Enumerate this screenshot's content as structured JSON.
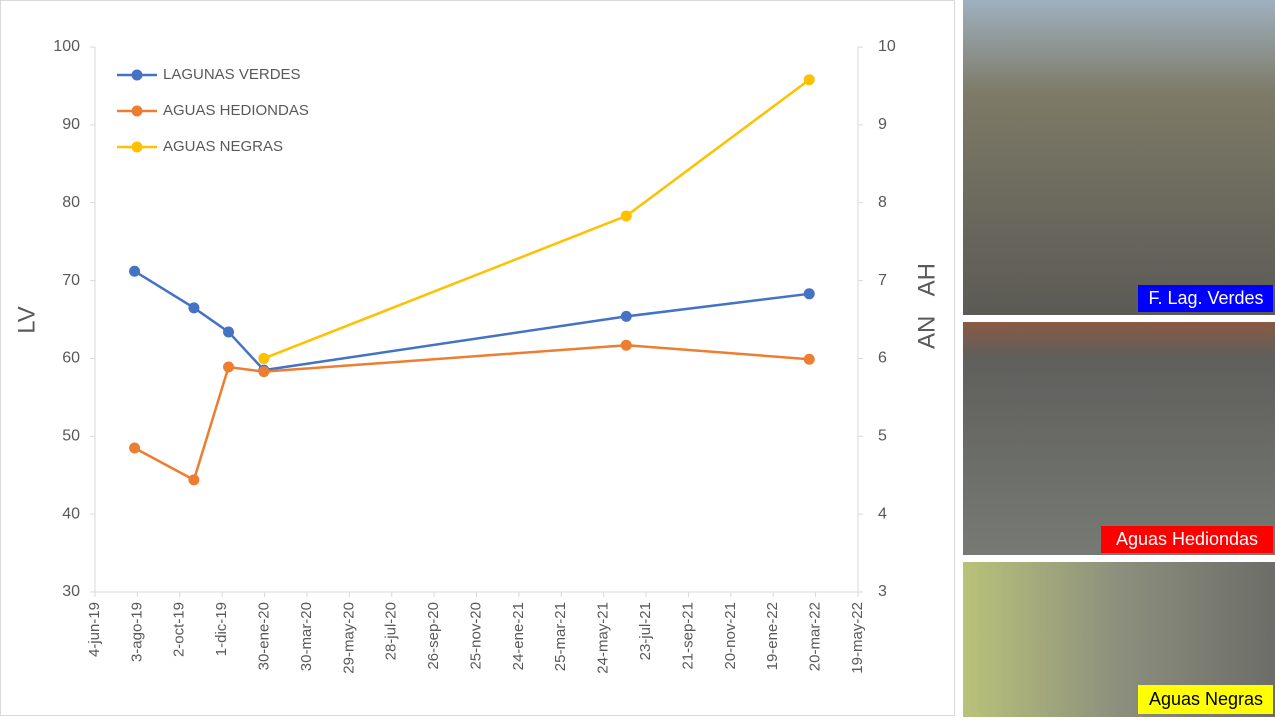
{
  "chart_data": {
    "type": "line",
    "x": [
      "2019-07-30",
      "2019-10-22",
      "2019-12-10",
      "2020-01-29",
      "2021-06-25",
      "2022-03-11"
    ],
    "series": [
      {
        "name": "LAGUNAS VERDES",
        "color": "#4472c4",
        "axis": "y",
        "values": [
          71.2,
          66.5,
          63.4,
          58.5,
          65.4,
          68.3
        ]
      },
      {
        "name": "AGUAS HEDIONDAS",
        "color": "#ed7d31",
        "axis": "y2",
        "values": [
          4.85,
          4.44,
          5.89,
          5.83,
          6.17,
          5.99
        ]
      },
      {
        "name": "AGUAS NEGRAS",
        "color": "#ffc000",
        "axis": "y2",
        "values": [
          null,
          null,
          null,
          6.0,
          7.83,
          9.58
        ]
      }
    ],
    "ylabel": "LV",
    "y2label": "AN AH",
    "xlim": [
      "2019-06-04",
      "2022-05-19"
    ],
    "xticks": [
      {
        "value": "2019-06-04",
        "label": "4-jun-19"
      },
      {
        "value": "2019-08-03",
        "label": "3-ago-19"
      },
      {
        "value": "2019-10-02",
        "label": "2-oct-19"
      },
      {
        "value": "2019-12-01",
        "label": "1-dic-19"
      },
      {
        "value": "2020-01-30",
        "label": "30-ene-20"
      },
      {
        "value": "2020-03-30",
        "label": "30-mar-20"
      },
      {
        "value": "2020-05-29",
        "label": "29-may-20"
      },
      {
        "value": "2020-07-28",
        "label": "28-jul-20"
      },
      {
        "value": "2020-09-26",
        "label": "26-sep-20"
      },
      {
        "value": "2020-11-25",
        "label": "25-nov-20"
      },
      {
        "value": "2021-01-24",
        "label": "24-ene-21"
      },
      {
        "value": "2021-03-25",
        "label": "25-mar-21"
      },
      {
        "value": "2021-05-24",
        "label": "24-may-21"
      },
      {
        "value": "2021-07-23",
        "label": "23-jul-21"
      },
      {
        "value": "2021-09-21",
        "label": "21-sep-21"
      },
      {
        "value": "2021-11-20",
        "label": "20-nov-21"
      },
      {
        "value": "2022-01-19",
        "label": "19-ene-22"
      },
      {
        "value": "2022-03-20",
        "label": "20-mar-22"
      },
      {
        "value": "2022-05-19",
        "label": "19-may-22"
      }
    ],
    "ylim": [
      30,
      100
    ],
    "yticks": [
      30,
      40,
      50,
      60,
      70,
      80,
      90,
      100
    ],
    "y2lim": [
      3,
      10
    ],
    "y2ticks": [
      3,
      4,
      5,
      6,
      7,
      8,
      9,
      10
    ],
    "grid": false,
    "legend": "upper left"
  },
  "photos": [
    {
      "caption": "F. Lag. Verdes"
    },
    {
      "caption": "Aguas Hediondas"
    },
    {
      "caption": "Aguas Negras"
    }
  ]
}
